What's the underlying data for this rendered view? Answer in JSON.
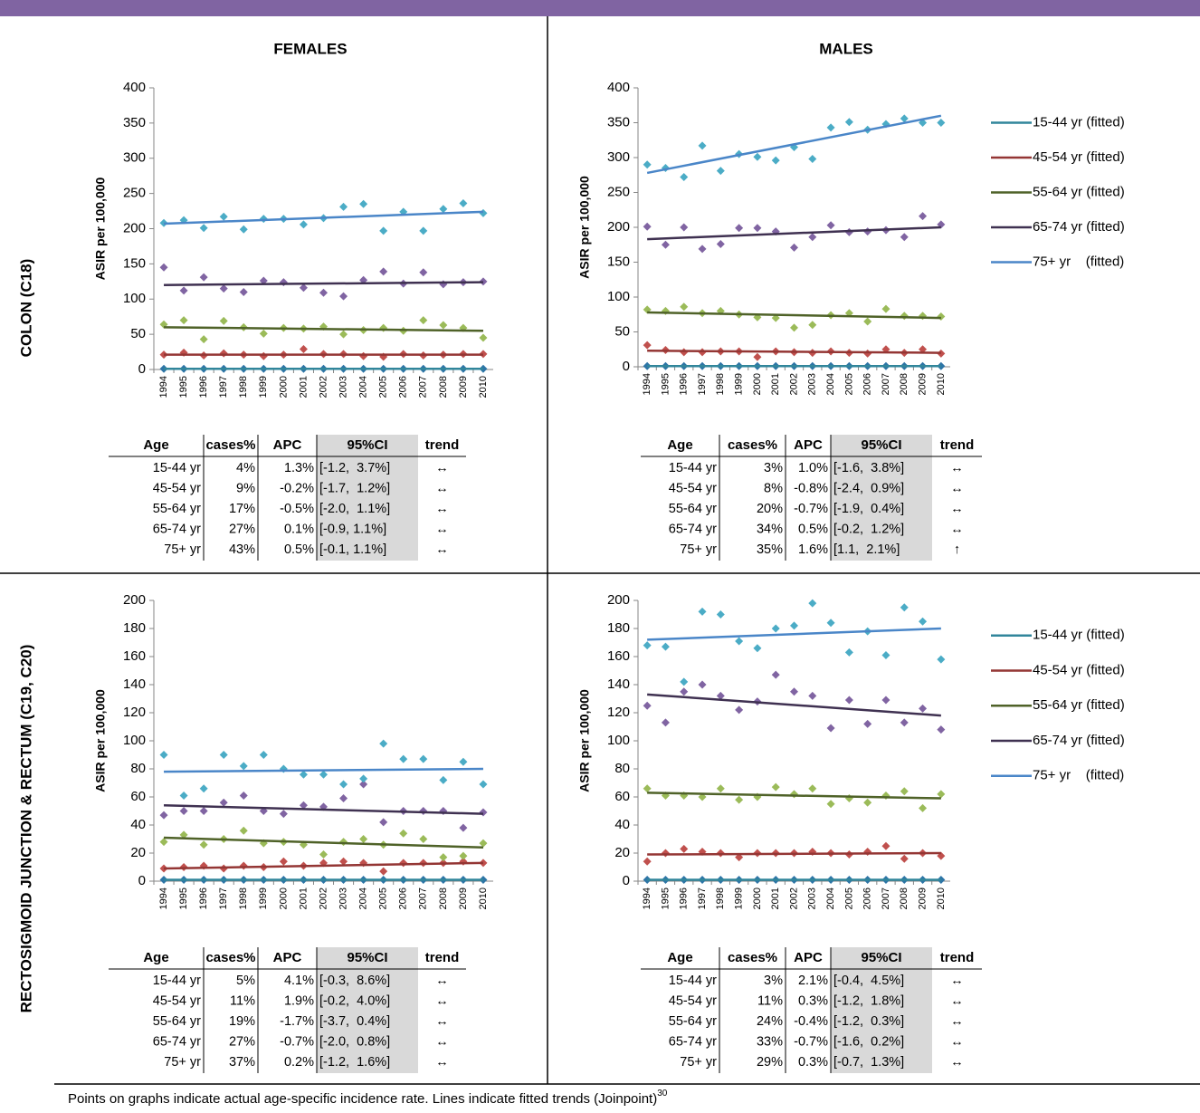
{
  "chart_data": [
    {
      "type": "line",
      "title": "FEMALES",
      "y_label": "ASIR per 100,000",
      "categories": [
        "1994",
        "1995",
        "1996",
        "1997",
        "1998",
        "1999",
        "2000",
        "2001",
        "2002",
        "2003",
        "2004",
        "2005",
        "2006",
        "2007",
        "2008",
        "2009",
        "2010"
      ],
      "ylim": [
        0,
        400
      ],
      "yticks": [
        0,
        50,
        100,
        150,
        200,
        250,
        300,
        350,
        400
      ],
      "legend": false,
      "series": [
        {
          "color": "#31869b",
          "marker_color": "#2e75a6",
          "values": [
            1,
            1,
            1,
            1,
            1,
            1,
            1,
            1,
            1,
            1,
            1,
            1,
            1,
            1,
            1,
            1,
            1
          ],
          "fitted": [
            1,
            1
          ]
        },
        {
          "color": "#943634",
          "marker_color": "#c0504d",
          "values": [
            21,
            24,
            20,
            23,
            21,
            19,
            21,
            29,
            22,
            22,
            19,
            18,
            22,
            20,
            21,
            22,
            22
          ],
          "fitted": [
            21,
            21
          ]
        },
        {
          "color": "#4f6228",
          "marker_color": "#9bbb59",
          "values": [
            64,
            70,
            43,
            69,
            60,
            51,
            59,
            58,
            61,
            50,
            56,
            59,
            55,
            70,
            63,
            59,
            45
          ],
          "fitted": [
            60,
            55
          ]
        },
        {
          "color": "#3f3151",
          "marker_color": "#8064a2",
          "values": [
            145,
            112,
            131,
            115,
            110,
            126,
            124,
            116,
            109,
            104,
            127,
            139,
            122,
            138,
            121,
            124,
            125
          ],
          "fitted": [
            120,
            124
          ]
        },
        {
          "color": "#4a86c8",
          "marker_color": "#4bacc6",
          "values": [
            208,
            212,
            201,
            217,
            199,
            214,
            214,
            206,
            215,
            231,
            235,
            197,
            224,
            197,
            228,
            236,
            222
          ],
          "fitted": [
            207,
            224
          ]
        }
      ]
    },
    {
      "type": "line",
      "title": "MALES",
      "y_label": "ASIR per 100,000",
      "categories": [
        "1994",
        "1995",
        "1996",
        "1997",
        "1998",
        "1999",
        "2000",
        "2001",
        "2002",
        "2003",
        "2004",
        "2005",
        "2006",
        "2007",
        "2008",
        "2009",
        "2010"
      ],
      "ylim": [
        0,
        400
      ],
      "yticks": [
        0,
        50,
        100,
        150,
        200,
        250,
        300,
        350,
        400
      ],
      "legend": "right",
      "series": [
        {
          "name": "15-44 yr (fitted)",
          "color": "#31869b",
          "marker_color": "#2e75a6",
          "values": [
            1,
            1,
            1,
            1,
            1,
            1,
            1,
            1,
            1,
            1,
            1,
            1,
            1,
            1,
            1,
            1,
            1
          ],
          "fitted": [
            1,
            1
          ]
        },
        {
          "name": "45-54 yr (fitted)",
          "color": "#943634",
          "marker_color": "#c0504d",
          "values": [
            31,
            24,
            21,
            21,
            22,
            22,
            14,
            22,
            21,
            20,
            22,
            20,
            19,
            25,
            20,
            25,
            19
          ],
          "fitted": [
            23,
            20
          ]
        },
        {
          "name": "55-64 yr (fitted)",
          "color": "#4f6228",
          "marker_color": "#9bbb59",
          "values": [
            82,
            80,
            86,
            77,
            80,
            75,
            71,
            70,
            56,
            60,
            74,
            77,
            65,
            83,
            73,
            73,
            72
          ],
          "fitted": [
            78,
            70
          ]
        },
        {
          "name": "65-74 yr (fitted)",
          "color": "#3f3151",
          "marker_color": "#8064a2",
          "values": [
            201,
            175,
            200,
            169,
            176,
            199,
            199,
            194,
            171,
            186,
            203,
            193,
            194,
            196,
            186,
            216,
            204
          ],
          "fitted": [
            183,
            200
          ]
        },
        {
          "name": "75+ yr    (fitted)",
          "color": "#4a86c8",
          "marker_color": "#4bacc6",
          "values": [
            290,
            285,
            272,
            317,
            281,
            305,
            301,
            296,
            315,
            298,
            343,
            351,
            340,
            348,
            356,
            350,
            350
          ],
          "fitted": [
            278,
            360
          ]
        }
      ]
    },
    {
      "type": "line",
      "y_label": "ASIR per 100,000",
      "categories": [
        "1994",
        "1995",
        "1996",
        "1997",
        "1998",
        "1999",
        "2000",
        "2001",
        "2002",
        "2003",
        "2004",
        "2005",
        "2006",
        "2007",
        "2008",
        "2009",
        "2010"
      ],
      "ylim": [
        0,
        200
      ],
      "yticks": [
        0,
        20,
        40,
        60,
        80,
        100,
        120,
        140,
        160,
        180,
        200
      ],
      "legend": false,
      "series": [
        {
          "color": "#31869b",
          "marker_color": "#2e75a6",
          "values": [
            1,
            1,
            1,
            1,
            1,
            1,
            1,
            1,
            1,
            1,
            1,
            1,
            1,
            1,
            1,
            1,
            1
          ],
          "fitted": [
            1,
            1
          ]
        },
        {
          "color": "#943634",
          "marker_color": "#c0504d",
          "values": [
            9,
            10,
            11,
            9,
            11,
            10,
            14,
            11,
            13,
            14,
            13,
            7,
            13,
            13,
            13,
            14,
            13
          ],
          "fitted": [
            9,
            13
          ]
        },
        {
          "color": "#4f6228",
          "marker_color": "#9bbb59",
          "values": [
            28,
            33,
            26,
            30,
            36,
            27,
            28,
            26,
            19,
            28,
            30,
            26,
            34,
            30,
            17,
            18,
            27
          ],
          "fitted": [
            31,
            24
          ]
        },
        {
          "color": "#3f3151",
          "marker_color": "#8064a2",
          "values": [
            47,
            50,
            50,
            56,
            61,
            50,
            48,
            54,
            53,
            59,
            69,
            42,
            50,
            50,
            50,
            38,
            49
          ],
          "fitted": [
            54,
            48
          ]
        },
        {
          "color": "#4a86c8",
          "marker_color": "#4bacc6",
          "values": [
            90,
            61,
            66,
            90,
            82,
            90,
            80,
            76,
            76,
            69,
            73,
            98,
            87,
            87,
            72,
            85,
            69
          ],
          "fitted": [
            78,
            80
          ]
        }
      ]
    },
    {
      "type": "line",
      "y_label": "ASIR per 100,000",
      "categories": [
        "1994",
        "1995",
        "1996",
        "1997",
        "1998",
        "1999",
        "2000",
        "2001",
        "2002",
        "2003",
        "2004",
        "2005",
        "2006",
        "2007",
        "2008",
        "2009",
        "2010"
      ],
      "ylim": [
        0,
        200
      ],
      "yticks": [
        0,
        20,
        40,
        60,
        80,
        100,
        120,
        140,
        160,
        180,
        200
      ],
      "legend": "right",
      "series": [
        {
          "name": "15-44 yr (fitted)",
          "color": "#31869b",
          "marker_color": "#2e75a6",
          "values": [
            1,
            1,
            1,
            1,
            1,
            1,
            1,
            1,
            1,
            1,
            1,
            1,
            1,
            1,
            1,
            1,
            1
          ],
          "fitted": [
            1,
            1
          ]
        },
        {
          "name": "45-54 yr (fitted)",
          "color": "#943634",
          "marker_color": "#c0504d",
          "values": [
            14,
            20,
            23,
            21,
            20,
            17,
            20,
            20,
            20,
            21,
            20,
            19,
            21,
            25,
            16,
            20,
            18
          ],
          "fitted": [
            19,
            20
          ]
        },
        {
          "name": "55-64 yr (fitted)",
          "color": "#4f6228",
          "marker_color": "#9bbb59",
          "values": [
            66,
            61,
            61,
            60,
            66,
            58,
            60,
            67,
            62,
            66,
            55,
            59,
            56,
            61,
            64,
            52,
            62
          ],
          "fitted": [
            63,
            59
          ]
        },
        {
          "name": "65-74 yr (fitted)",
          "color": "#3f3151",
          "marker_color": "#8064a2",
          "values": [
            125,
            113,
            135,
            140,
            132,
            122,
            128,
            147,
            135,
            132,
            109,
            129,
            112,
            129,
            113,
            123,
            108
          ],
          "fitted": [
            133,
            118
          ]
        },
        {
          "name": "75+ yr    (fitted)",
          "color": "#4a86c8",
          "marker_color": "#4bacc6",
          "values": [
            168,
            167,
            142,
            192,
            190,
            171,
            166,
            180,
            182,
            198,
            184,
            163,
            178,
            161,
            195,
            185,
            158
          ],
          "fitted": [
            172,
            180
          ]
        }
      ]
    }
  ],
  "row_labels": [
    "COLON (C18)",
    "RECTOSIGMOID JUNCTION & RECTUM  (C19, C20)"
  ],
  "tables": [
    {
      "columns": [
        "Age",
        "cases%",
        "APC",
        "95%CI",
        "trend"
      ],
      "rows": [
        [
          "15-44 yr",
          "4%",
          "1.3%",
          "[-1.2,  3.7%]",
          "↔"
        ],
        [
          "45-54 yr",
          "9%",
          "-0.2%",
          "[-1.7,  1.2%]",
          "↔"
        ],
        [
          "55-64 yr",
          "17%",
          "-0.5%",
          "[-2.0,  1.1%]",
          "↔"
        ],
        [
          "65-74 yr",
          "27%",
          "0.1%",
          "[-0.9, 1.1%]",
          "↔"
        ],
        [
          "75+ yr",
          "43%",
          "0.5%",
          "[-0.1, 1.1%]",
          "↔"
        ]
      ]
    },
    {
      "columns": [
        "Age",
        "cases%",
        "APC",
        "95%CI",
        "trend"
      ],
      "rows": [
        [
          "15-44 yr",
          "3%",
          "1.0%",
          "[-1.6,  3.8%]",
          "↔"
        ],
        [
          "45-54 yr",
          "8%",
          "-0.8%",
          "[-2.4,  0.9%]",
          "↔"
        ],
        [
          "55-64 yr",
          "20%",
          "-0.7%",
          "[-1.9,  0.4%]",
          "↔"
        ],
        [
          "65-74 yr",
          "34%",
          "0.5%",
          "[-0.2,  1.2%]",
          "↔"
        ],
        [
          "75+ yr",
          "35%",
          "1.6%",
          "[1.1,  2.1%]",
          "↑"
        ]
      ]
    },
    {
      "columns": [
        "Age",
        "cases%",
        "APC",
        "95%CI",
        "trend"
      ],
      "rows": [
        [
          "15-44 yr",
          "5%",
          "4.1%",
          "[-0.3,  8.6%]",
          "↔"
        ],
        [
          "45-54 yr",
          "11%",
          "1.9%",
          "[-0.2,  4.0%]",
          "↔"
        ],
        [
          "55-64 yr",
          "19%",
          "-1.7%",
          "[-3.7,  0.4%]",
          "↔"
        ],
        [
          "65-74 yr",
          "27%",
          "-0.7%",
          "[-2.0,  0.8%]",
          "↔"
        ],
        [
          "75+ yr",
          "37%",
          "0.2%",
          "[-1.2,  1.6%]",
          "↔"
        ]
      ]
    },
    {
      "columns": [
        "Age",
        "cases%",
        "APC",
        "95%CI",
        "trend"
      ],
      "rows": [
        [
          "15-44 yr",
          "3%",
          "2.1%",
          "[-0.4,  4.5%]",
          "↔"
        ],
        [
          "45-54 yr",
          "11%",
          "0.3%",
          "[-1.2,  1.8%]",
          "↔"
        ],
        [
          "55-64 yr",
          "24%",
          "-0.4%",
          "[-1.2,  0.3%]",
          "↔"
        ],
        [
          "65-74 yr",
          "33%",
          "-0.7%",
          "[-1.6,  0.2%]",
          "↔"
        ],
        [
          "75+ yr",
          "29%",
          "0.3%",
          "[-0.7,  1.3%]",
          "↔"
        ]
      ]
    }
  ],
  "footnote": "Points on graphs indicate actual age-specific incidence rate. Lines indicate fitted trends (Joinpoint)",
  "footnote_ref": "30"
}
